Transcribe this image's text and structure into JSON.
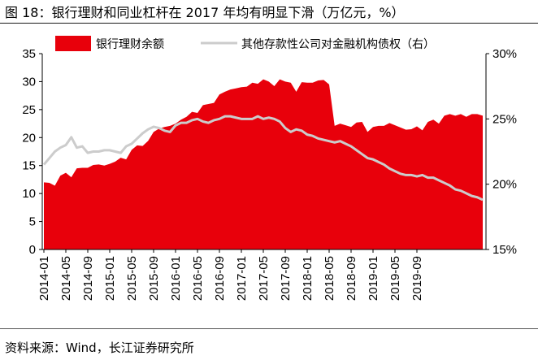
{
  "page": {
    "title": "图 18：银行理财和同业杠杆在 2017 年均有明显下滑（万亿元，%）",
    "source": "资料来源：Wind，长江证券研究所"
  },
  "chart_data": {
    "type": "area+line",
    "title": "",
    "xlabel": "",
    "ylabel": "",
    "x_tick_labels": [
      "2014-01",
      "2014-05",
      "2014-09",
      "2015-01",
      "2015-05",
      "2015-09",
      "2016-01",
      "2016-05",
      "2016-09",
      "2017-01",
      "2017-05",
      "2017-09",
      "2018-01",
      "2018-05",
      "2018-09",
      "2019-01",
      "2019-05",
      "2019-09"
    ],
    "x_start": "2014-01",
    "x_end": "2019-12",
    "y_left": {
      "lim": [
        0,
        35
      ],
      "ticks": [
        "0",
        "5",
        "10",
        "15",
        "20",
        "25",
        "30",
        "35"
      ]
    },
    "y_right": {
      "lim": [
        15,
        30
      ],
      "ticks": [
        "15%",
        "20%",
        "25%",
        "30%"
      ]
    },
    "grid": false,
    "legend_position": "top",
    "series": [
      {
        "name": "银行理财余额",
        "type": "area",
        "axis": "left",
        "color": "#e8000b",
        "values": [
          12.0,
          11.9,
          11.4,
          13.2,
          13.7,
          12.9,
          14.5,
          14.6,
          14.6,
          15.1,
          15.2,
          15.0,
          15.3,
          15.7,
          16.4,
          16.1,
          17.8,
          18.6,
          18.5,
          19.4,
          21.0,
          21.6,
          21.9,
          22.1,
          22.5,
          23.2,
          23.7,
          24.6,
          24.4,
          25.8,
          26.0,
          26.2,
          27.7,
          28.2,
          28.6,
          28.8,
          29.0,
          29.1,
          29.8,
          29.6,
          30.4,
          30.0,
          29.2,
          30.4,
          30.0,
          29.8,
          28.2,
          29.9,
          29.8,
          29.8,
          30.2,
          30.3,
          29.5,
          22.1,
          22.5,
          22.2,
          21.9,
          22.7,
          22.8,
          21.0,
          21.9,
          22.1,
          22.1,
          22.6,
          22.2,
          21.8,
          21.4,
          21.5,
          22.0,
          21.3,
          22.8,
          23.2,
          22.5,
          23.9,
          24.2,
          23.9,
          24.2,
          23.7,
          24.2,
          24.2,
          23.9
        ]
      },
      {
        "name": "其他存款性公司对金融机构债权（右）",
        "type": "line",
        "axis": "right",
        "color": "#cccccc",
        "values": [
          21.5,
          22.0,
          22.5,
          22.8,
          23.0,
          23.6,
          22.8,
          22.9,
          22.4,
          22.5,
          22.5,
          22.6,
          22.6,
          22.5,
          22.4,
          22.9,
          23.1,
          23.5,
          23.9,
          24.2,
          24.4,
          24.3,
          24.1,
          24.0,
          24.5,
          24.7,
          24.7,
          24.9,
          25.0,
          24.8,
          24.7,
          24.9,
          25.0,
          25.2,
          25.2,
          25.1,
          25.0,
          25.0,
          25.0,
          25.2,
          25.0,
          25.1,
          25.0,
          24.8,
          24.3,
          24.0,
          24.2,
          24.1,
          23.8,
          23.7,
          23.5,
          23.4,
          23.3,
          23.2,
          23.3,
          23.1,
          22.9,
          22.6,
          22.3,
          22.0,
          21.9,
          21.7,
          21.5,
          21.2,
          21.0,
          20.8,
          20.7,
          20.7,
          20.6,
          20.7,
          20.5,
          20.5,
          20.3,
          20.1,
          19.9,
          19.6,
          19.5,
          19.3,
          19.1,
          19.0,
          18.8
        ]
      }
    ]
  }
}
